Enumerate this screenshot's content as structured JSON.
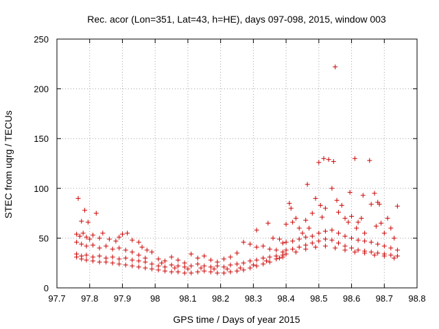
{
  "chart_data": {
    "type": "scatter",
    "title": "Rec. acor (Lon=351, Lat=43, h=HE), days 097-098, 2015, window 003",
    "xlabel": "GPS time / Days of year 2015",
    "ylabel": "STEC from uqrg / TECUs",
    "xlim": [
      97.7,
      98.8
    ],
    "ylim": [
      0,
      250
    ],
    "xticks": [
      97.7,
      97.8,
      97.9,
      98,
      98.1,
      98.2,
      98.3,
      98.4,
      98.5,
      98.6,
      98.7,
      98.8
    ],
    "xtick_labels": [
      "97.7",
      "97.8",
      "97.9",
      "98",
      "98.1",
      "98.2",
      "98.3",
      "98.4",
      "98.5",
      "98.6",
      "98.7",
      "98.8"
    ],
    "yticks": [
      0,
      50,
      100,
      150,
      200,
      250
    ],
    "ytick_labels": [
      "0",
      "50",
      "100",
      "150",
      "200",
      "250"
    ],
    "grid": true,
    "marker": "+",
    "color": "#cc0000",
    "series": [
      {
        "name": "STEC",
        "points": [
          [
            97.765,
            90
          ],
          [
            97.775,
            67
          ],
          [
            97.785,
            78
          ],
          [
            97.795,
            66
          ],
          [
            97.82,
            75
          ],
          [
            97.76,
            54
          ],
          [
            97.77,
            52
          ],
          [
            97.78,
            55
          ],
          [
            97.79,
            51
          ],
          [
            97.8,
            49
          ],
          [
            97.81,
            53
          ],
          [
            97.83,
            50
          ],
          [
            97.84,
            55
          ],
          [
            97.86,
            49
          ],
          [
            97.88,
            47
          ],
          [
            97.89,
            51
          ],
          [
            97.9,
            54
          ],
          [
            97.915,
            55
          ],
          [
            97.93,
            48
          ],
          [
            97.95,
            46
          ],
          [
            97.96,
            41
          ],
          [
            97.975,
            38
          ],
          [
            97.99,
            36
          ],
          [
            97.76,
            46
          ],
          [
            97.775,
            44
          ],
          [
            97.79,
            42
          ],
          [
            97.81,
            43
          ],
          [
            97.83,
            40
          ],
          [
            97.85,
            42
          ],
          [
            97.87,
            39
          ],
          [
            97.89,
            40
          ],
          [
            97.91,
            38
          ],
          [
            97.93,
            36
          ],
          [
            97.95,
            33
          ],
          [
            97.97,
            30
          ],
          [
            97.76,
            34
          ],
          [
            97.775,
            32
          ],
          [
            97.79,
            33
          ],
          [
            97.81,
            31
          ],
          [
            97.83,
            32
          ],
          [
            97.85,
            30
          ],
          [
            97.87,
            31
          ],
          [
            97.89,
            29
          ],
          [
            97.91,
            30
          ],
          [
            97.93,
            28
          ],
          [
            97.95,
            27
          ],
          [
            97.97,
            26
          ],
          [
            97.99,
            24
          ],
          [
            97.76,
            31
          ],
          [
            97.775,
            29
          ],
          [
            97.79,
            28
          ],
          [
            97.81,
            27
          ],
          [
            97.83,
            26
          ],
          [
            97.85,
            26
          ],
          [
            97.87,
            25
          ],
          [
            97.89,
            24
          ],
          [
            97.91,
            23
          ],
          [
            97.93,
            22
          ],
          [
            97.95,
            21
          ],
          [
            97.97,
            20
          ],
          [
            97.99,
            19
          ],
          [
            98.01,
            29
          ],
          [
            98.03,
            27
          ],
          [
            98.05,
            31
          ],
          [
            98.07,
            28
          ],
          [
            98.09,
            25
          ],
          [
            98.11,
            34
          ],
          [
            98.13,
            30
          ],
          [
            98.15,
            32
          ],
          [
            98.17,
            28
          ],
          [
            98.19,
            26
          ],
          [
            98.21,
            29
          ],
          [
            98.23,
            31
          ],
          [
            98.25,
            35
          ],
          [
            98.27,
            46
          ],
          [
            98.29,
            44
          ],
          [
            98.31,
            41
          ],
          [
            98.33,
            42
          ],
          [
            98.35,
            39
          ],
          [
            98.37,
            38
          ],
          [
            98.39,
            36
          ],
          [
            98.01,
            22
          ],
          [
            98.03,
            21
          ],
          [
            98.05,
            23
          ],
          [
            98.07,
            22
          ],
          [
            98.09,
            21
          ],
          [
            98.11,
            22
          ],
          [
            98.13,
            24
          ],
          [
            98.15,
            22
          ],
          [
            98.17,
            21
          ],
          [
            98.19,
            22
          ],
          [
            98.21,
            21
          ],
          [
            98.23,
            23
          ],
          [
            98.25,
            24
          ],
          [
            98.27,
            25
          ],
          [
            98.29,
            27
          ],
          [
            98.31,
            28
          ],
          [
            98.33,
            30
          ],
          [
            98.35,
            31
          ],
          [
            98.37,
            32
          ],
          [
            98.39,
            33
          ],
          [
            98.01,
            18
          ],
          [
            98.03,
            17
          ],
          [
            98.05,
            16
          ],
          [
            98.07,
            16
          ],
          [
            98.09,
            15
          ],
          [
            98.11,
            15
          ],
          [
            98.13,
            16
          ],
          [
            98.15,
            17
          ],
          [
            98.17,
            16
          ],
          [
            98.19,
            15
          ],
          [
            98.21,
            15
          ],
          [
            98.23,
            16
          ],
          [
            98.25,
            17
          ],
          [
            98.27,
            18
          ],
          [
            98.29,
            20
          ],
          [
            98.31,
            22
          ],
          [
            98.33,
            24
          ],
          [
            98.35,
            26
          ],
          [
            98.37,
            29
          ],
          [
            98.39,
            31
          ],
          [
            98.02,
            25
          ],
          [
            98.06,
            20
          ],
          [
            98.1,
            19
          ],
          [
            98.14,
            20
          ],
          [
            98.18,
            19
          ],
          [
            98.22,
            19
          ],
          [
            98.26,
            20
          ],
          [
            98.3,
            23
          ],
          [
            98.34,
            27
          ],
          [
            98.38,
            30
          ],
          [
            98.31,
            58
          ],
          [
            98.345,
            65
          ],
          [
            98.36,
            50
          ],
          [
            98.38,
            49
          ],
          [
            98.39,
            45
          ],
          [
            98.4,
            64
          ],
          [
            98.41,
            85
          ],
          [
            98.415,
            80
          ],
          [
            98.42,
            66
          ],
          [
            98.43,
            70
          ],
          [
            98.44,
            60
          ],
          [
            98.45,
            55
          ],
          [
            98.46,
            68
          ],
          [
            98.465,
            104
          ],
          [
            98.47,
            60
          ],
          [
            98.48,
            75
          ],
          [
            98.49,
            90
          ],
          [
            98.5,
            126
          ],
          [
            98.505,
            83
          ],
          [
            98.51,
            71
          ],
          [
            98.515,
            130
          ],
          [
            98.52,
            80
          ],
          [
            98.53,
            129
          ],
          [
            98.54,
            100
          ],
          [
            98.545,
            127
          ],
          [
            98.55,
            222
          ],
          [
            98.555,
            88
          ],
          [
            98.56,
            76
          ],
          [
            98.57,
            83
          ],
          [
            98.58,
            70
          ],
          [
            98.59,
            66
          ],
          [
            98.595,
            96
          ],
          [
            98.6,
            72
          ],
          [
            98.61,
            130
          ],
          [
            98.615,
            60
          ],
          [
            98.62,
            66
          ],
          [
            98.63,
            70
          ],
          [
            98.635,
            93
          ],
          [
            98.64,
            55
          ],
          [
            98.655,
            128
          ],
          [
            98.66,
            84
          ],
          [
            98.67,
            95
          ],
          [
            98.675,
            62
          ],
          [
            98.68,
            86
          ],
          [
            98.685,
            84
          ],
          [
            98.69,
            65
          ],
          [
            98.7,
            55
          ],
          [
            98.71,
            70
          ],
          [
            98.72,
            60
          ],
          [
            98.73,
            50
          ],
          [
            98.74,
            82
          ],
          [
            98.4,
            46
          ],
          [
            98.42,
            47
          ],
          [
            98.44,
            49
          ],
          [
            98.46,
            51
          ],
          [
            98.48,
            52
          ],
          [
            98.5,
            55
          ],
          [
            98.52,
            57
          ],
          [
            98.54,
            58
          ],
          [
            98.56,
            55
          ],
          [
            98.58,
            52
          ],
          [
            98.6,
            50
          ],
          [
            98.62,
            48
          ],
          [
            98.64,
            47
          ],
          [
            98.66,
            46
          ],
          [
            98.68,
            44
          ],
          [
            98.7,
            42
          ],
          [
            98.72,
            40
          ],
          [
            98.74,
            38
          ],
          [
            98.4,
            38
          ],
          [
            98.42,
            39
          ],
          [
            98.44,
            41
          ],
          [
            98.46,
            43
          ],
          [
            98.48,
            45
          ],
          [
            98.5,
            47
          ],
          [
            98.52,
            49
          ],
          [
            98.54,
            48
          ],
          [
            98.56,
            45
          ],
          [
            98.58,
            42
          ],
          [
            98.6,
            40
          ],
          [
            98.62,
            38
          ],
          [
            98.64,
            37
          ],
          [
            98.66,
            36
          ],
          [
            98.68,
            35
          ],
          [
            98.7,
            34
          ],
          [
            98.72,
            33
          ],
          [
            98.74,
            32
          ],
          [
            98.4,
            34
          ],
          [
            98.43,
            36
          ],
          [
            98.46,
            39
          ],
          [
            98.49,
            41
          ],
          [
            98.52,
            42
          ],
          [
            98.55,
            40
          ],
          [
            98.58,
            38
          ],
          [
            98.61,
            36
          ],
          [
            98.64,
            35
          ],
          [
            98.67,
            33
          ],
          [
            98.7,
            32
          ],
          [
            98.73,
            30
          ]
        ]
      }
    ]
  }
}
